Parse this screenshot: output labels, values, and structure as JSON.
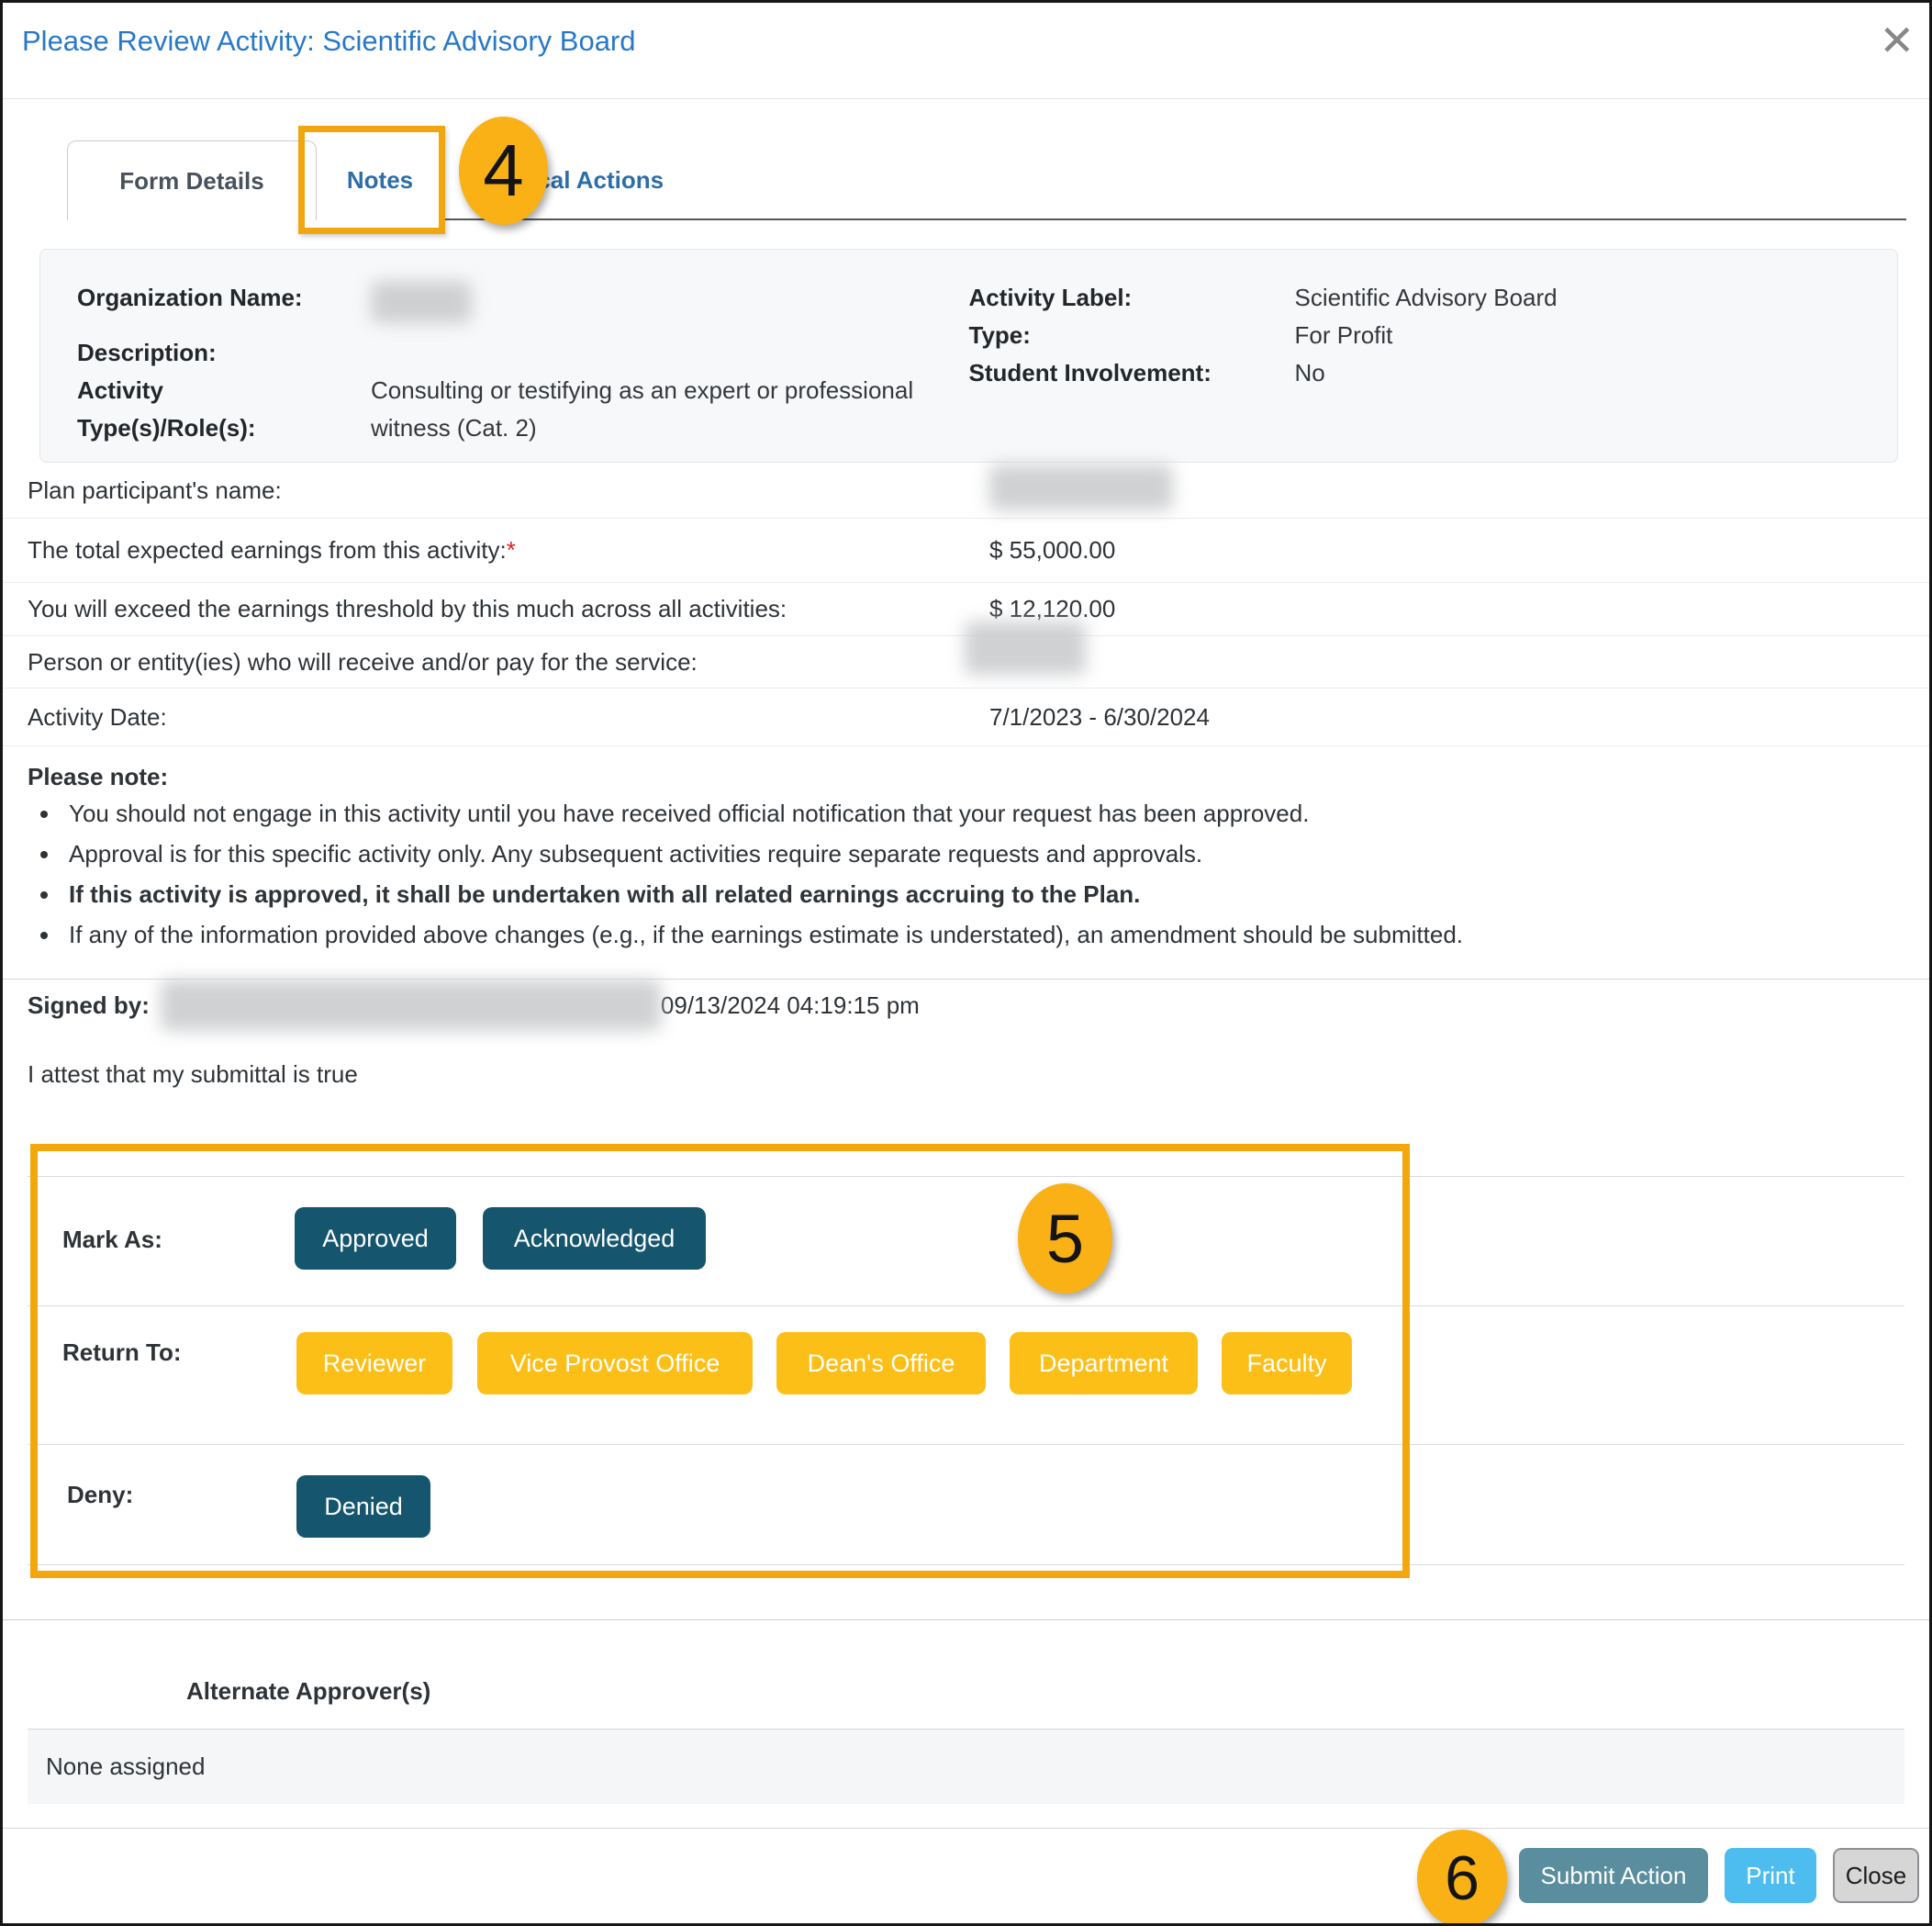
{
  "modal": {
    "title": "Please Review Activity: Scientific Advisory Board",
    "close_icon": "✕"
  },
  "tabs": [
    {
      "label": "Form Details",
      "active": true
    },
    {
      "label": "Notes",
      "active": false
    },
    {
      "label": "Historical Actions",
      "active": false
    }
  ],
  "info_box": {
    "left": [
      {
        "label": "Organization Name:",
        "value": "",
        "redacted": true
      },
      {
        "label": "Description:",
        "value": ""
      },
      {
        "label": "Activity Type(s)/Role(s):",
        "value": "Consulting or testifying as an expert or professional witness (Cat. 2)"
      }
    ],
    "right": [
      {
        "label": "Activity Label:",
        "value": "Scientific Advisory Board"
      },
      {
        "label": "Type:",
        "value": "For Profit"
      },
      {
        "label": "Student Involvement:",
        "value": "No"
      }
    ]
  },
  "detail_rows": [
    {
      "label": "Plan participant's name:",
      "value": "",
      "redacted": true
    },
    {
      "label": "The total expected earnings from this activity:",
      "required": "*",
      "value": "$ 55,000.00"
    },
    {
      "label": "You will exceed the earnings threshold by this much across all activities:",
      "value": "$ 12,120.00"
    },
    {
      "label": "Person or entity(ies) who will receive and/or pay for the service:",
      "value": "",
      "redacted": true
    },
    {
      "label": "Activity Date:",
      "value": "7/1/2023 - 6/30/2024"
    }
  ],
  "please_note": {
    "heading": "Please note:",
    "bullets": [
      {
        "text": "You should not engage in this activity until you have received official notification that your request has been approved.",
        "bold": false
      },
      {
        "text": "Approval is for this specific activity only. Any subsequent activities require separate requests and approvals.",
        "bold": false
      },
      {
        "text": "If this activity is approved, it shall be undertaken with all related earnings accruing to the Plan.",
        "bold": true
      },
      {
        "text": "If any of the information provided above changes (e.g., if the earnings estimate is understated), an amendment should be submitted.",
        "bold": false
      }
    ]
  },
  "signature": {
    "label": "Signed by:",
    "signer_redacted": true,
    "timestamp": "09/13/2024 04:19:15 pm",
    "attestation": "I attest that my submittal is true"
  },
  "actions": {
    "mark_as_label": "Mark As:",
    "mark_as_buttons": [
      "Approved",
      "Acknowledged"
    ],
    "return_to_label": "Return To:",
    "return_to_buttons": [
      "Reviewer",
      "Vice Provost Office",
      "Dean's Office",
      "Department",
      "Faculty"
    ],
    "deny_label": "Deny:",
    "deny_buttons": [
      "Denied"
    ]
  },
  "alternate_approvers": {
    "heading": "Alternate Approver(s)",
    "value": "None assigned"
  },
  "footer": {
    "submit_label": "Submit Action",
    "print_label": "Print",
    "close_label": "Close"
  },
  "annotations": {
    "step_4": "4",
    "step_5": "5",
    "step_6": "6"
  },
  "colors": {
    "title_blue": "#2878c8",
    "tab_blue": "#2d6da8",
    "teal_button": "#15566e",
    "yellow_button": "#fcbf17",
    "annotation_orange": "#f9b115",
    "submit_button": "#5a8e9f",
    "print_button": "#4cbdee",
    "close_button_bg": "#d6d6d6",
    "required_red": "#e01f1f"
  }
}
